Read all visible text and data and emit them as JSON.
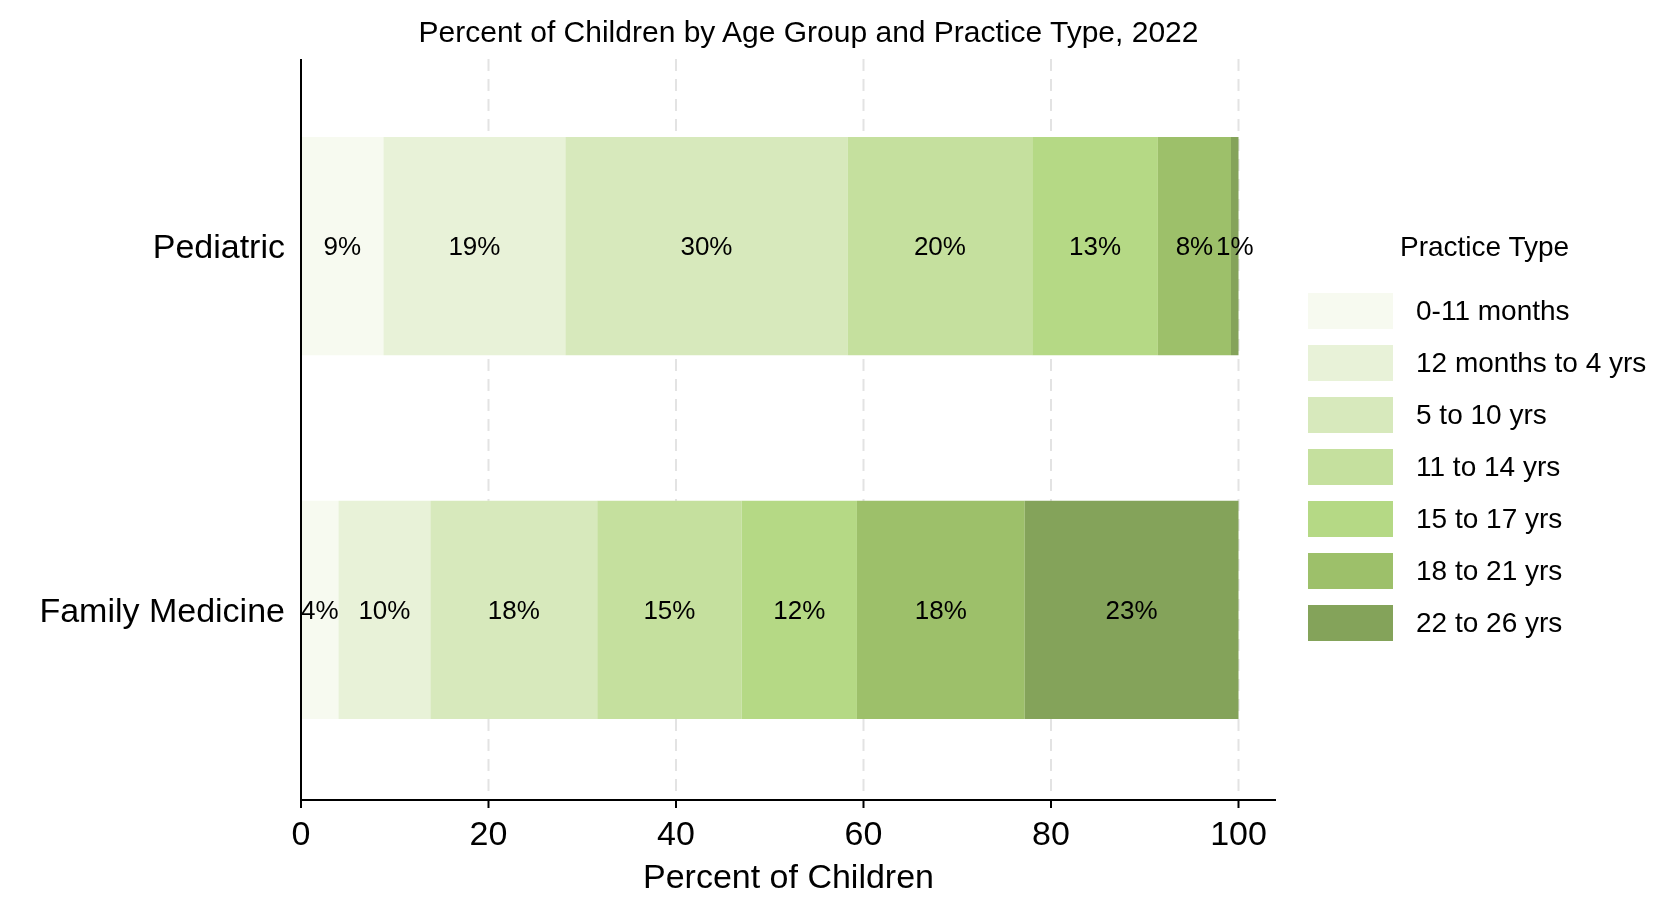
{
  "chart_data": {
    "type": "bar",
    "orientation": "horizontal",
    "stacked": true,
    "title": "Percent of Children by Age Group and Practice Type, 2022",
    "xlabel": "Percent of Children",
    "legend_title": "Practice Type",
    "legend": "right",
    "grid": "x",
    "categories": [
      "Pediatric",
      "Family Medicine"
    ],
    "xlim": [
      0,
      104
    ],
    "xticks": [
      0,
      20,
      40,
      60,
      80,
      100
    ],
    "series": [
      {
        "name": "0-11 months",
        "color": "#f7faf0",
        "values": [
          8.8,
          4.0
        ],
        "value_labels": [
          "9%",
          "4%"
        ]
      },
      {
        "name": "12 months to 4 yrs",
        "color": "#e8f2d8",
        "values": [
          19.4,
          9.8
        ],
        "value_labels": [
          "19%",
          "10%"
        ]
      },
      {
        "name": "5 to 10 yrs",
        "color": "#d7e9bc",
        "values": [
          30.1,
          17.8
        ],
        "value_labels": [
          "30%",
          "18%"
        ]
      },
      {
        "name": "11 to 14 yrs",
        "color": "#c5e09e",
        "values": [
          19.7,
          15.4
        ],
        "value_labels": [
          "20%",
          "15%"
        ]
      },
      {
        "name": "15 to 17 yrs",
        "color": "#b5d985",
        "values": [
          13.4,
          12.3
        ],
        "value_labels": [
          "13%",
          "12%"
        ]
      },
      {
        "name": "18 to 21 yrs",
        "color": "#9dc06a",
        "values": [
          7.8,
          17.9
        ],
        "value_labels": [
          "8%",
          "18%"
        ]
      },
      {
        "name": "22 to 26 yrs",
        "color": "#84a35a",
        "values": [
          0.8,
          22.8
        ],
        "value_labels": [
          "1%",
          "23%"
        ]
      }
    ]
  }
}
